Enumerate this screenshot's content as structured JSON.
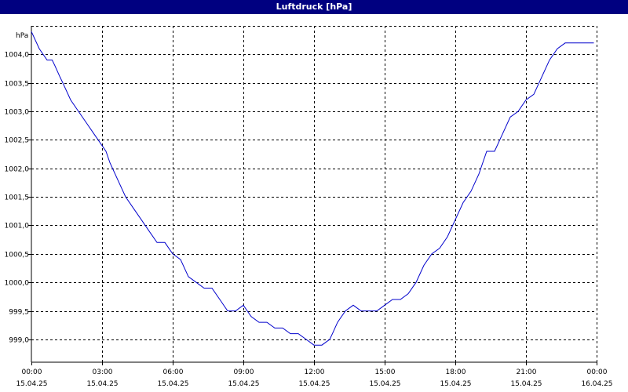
{
  "window": {
    "title": "Luftdruck [hPa]"
  },
  "chart_data": {
    "type": "line",
    "title": "Luftdruck [hPa]",
    "ylabel": "hPa",
    "xlabel": "",
    "ylim": [
      998.6,
      1004.5
    ],
    "y_ticks": [
      999.0,
      999.5,
      1000.0,
      1000.5,
      1001.0,
      1001.5,
      1002.0,
      1002.5,
      1003.0,
      1003.5,
      1004.0
    ],
    "y_tick_labels": [
      "999,0",
      "999,5",
      "1000,0",
      "1000,5",
      "1001,0",
      "1001,5",
      "1002,0",
      "1002,5",
      "1003,0",
      "1003,5",
      "1004,0"
    ],
    "x_tick_times": [
      "00:00",
      "03:00",
      "06:00",
      "09:00",
      "12:00",
      "15:00",
      "18:00",
      "21:00",
      "00:00"
    ],
    "x_tick_dates": [
      "15.04.25",
      "15.04.25",
      "15.04.25",
      "15.04.25",
      "15.04.25",
      "15.04.25",
      "15.04.25",
      "15.04.25",
      "16.04.25"
    ],
    "xlim": [
      "15.04.25 00:00",
      "16.04.25 00:00"
    ],
    "grid": true,
    "line_color": "#0000cc",
    "series": [
      {
        "name": "",
        "x": [
          "00:00",
          "00:20",
          "00:40",
          "00:53",
          "01:00",
          "01:13",
          "01:20",
          "01:40",
          "02:00",
          "02:20",
          "02:40",
          "03:00",
          "03:10",
          "03:20",
          "03:40",
          "04:00",
          "04:20",
          "04:40",
          "05:00",
          "05:20",
          "05:40",
          "06:00",
          "06:20",
          "06:40",
          "07:00",
          "07:20",
          "07:40",
          "08:00",
          "08:20",
          "08:40",
          "09:00",
          "09:10",
          "09:20",
          "09:40",
          "10:00",
          "10:20",
          "10:40",
          "11:00",
          "11:20",
          "11:40",
          "12:00",
          "12:20",
          "12:40",
          "12:47",
          "13:00",
          "13:20",
          "13:40",
          "14:00",
          "14:20",
          "14:40",
          "15:00",
          "15:20",
          "15:40",
          "16:00",
          "16:20",
          "16:40",
          "17:00",
          "17:20",
          "17:40",
          "18:00",
          "18:20",
          "18:40",
          "19:00",
          "19:20",
          "19:40",
          "20:00",
          "20:20",
          "20:40",
          "21:00",
          "21:20",
          "21:40",
          "22:00",
          "22:20",
          "22:40",
          "23:00",
          "23:20",
          "23:40",
          "23:53"
        ],
        "y": [
          1004.4,
          1004.1,
          1003.9,
          1003.9,
          1003.8,
          1003.6,
          1003.5,
          1003.2,
          1003.0,
          1002.8,
          1002.6,
          1002.4,
          1002.3,
          1002.1,
          1001.8,
          1001.5,
          1001.3,
          1001.1,
          1000.9,
          1000.7,
          1000.7,
          1000.5,
          1000.4,
          1000.1,
          1000.0,
          999.9,
          999.9,
          999.7,
          999.5,
          999.5,
          999.6,
          999.5,
          999.4,
          999.3,
          999.3,
          999.2,
          999.2,
          999.1,
          999.1,
          999.0,
          998.9,
          998.9,
          999.0,
          999.1,
          999.3,
          999.5,
          999.6,
          999.5,
          999.5,
          999.5,
          999.6,
          999.7,
          999.7,
          999.8,
          1000.0,
          1000.3,
          1000.5,
          1000.6,
          1000.8,
          1001.1,
          1001.4,
          1001.6,
          1001.9,
          1002.3,
          1002.3,
          1002.6,
          1002.9,
          1003.0,
          1003.2,
          1003.3,
          1003.6,
          1003.9,
          1004.1,
          1004.2,
          1004.2,
          1004.2,
          1004.2,
          1004.2
        ]
      }
    ]
  }
}
